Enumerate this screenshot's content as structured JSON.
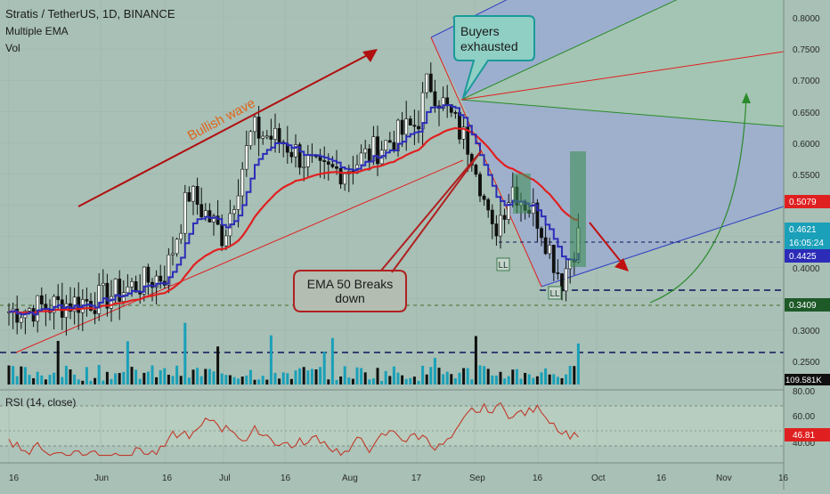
{
  "header": {
    "title": "Stratis / TetherUS, 1D, BINANCE",
    "indicator_1": "Multiple EMA",
    "indicator_2": "Vol"
  },
  "annotations": {
    "bullish_wave": "Bullish wave",
    "buyers_line1": "Buyers",
    "buyers_line2": "exhausted",
    "ema_line1": "EMA 50 Breaks",
    "ema_line2": "down",
    "ll_1": "LL",
    "ll_2": "LL"
  },
  "rsi": {
    "label": "RSI (14, close)",
    "ticks": [
      "80.00",
      "60.00",
      "40.00"
    ],
    "badge": "46.81"
  },
  "price_axis": {
    "ticks": [
      "0.8000",
      "0.7500",
      "0.7000",
      "0.6500",
      "0.6000",
      "0.5500",
      "0.4000",
      "0.3000",
      "0.2500"
    ],
    "badges": {
      "ema_red": "0.5079",
      "price": "0.4621",
      "countdown": "16:05:24",
      "ema_blue": "0.4425",
      "support": "0.3409",
      "volume": "109.581K"
    }
  },
  "time_axis": [
    "16",
    "Jun",
    "16",
    "Jul",
    "16",
    "Aug",
    "17",
    "Sep",
    "16",
    "Oct",
    "16",
    "Nov",
    "16"
  ],
  "colors": {
    "background": "#a8c0b6",
    "ema_red": "#e02020",
    "ema_blue": "#2c2cb8",
    "candle": "#101010",
    "volume_teal": "#1aa0b8",
    "volume_dark": "#101010",
    "pitchfork_fill_blue": "#9aa9d6",
    "pitchfork_fill_green": "#a6cfa8",
    "annotation_red": "#b01010",
    "buyers_box": "#1a9a9a",
    "rsi_line": "#c0392b",
    "wave_text": "#e0651a"
  },
  "chart_data": {
    "type": "candlestick",
    "symbol": "Stratis / TetherUS",
    "timeframe": "1D",
    "exchange": "BINANCE",
    "ylim": [
      0.2,
      0.8
    ],
    "close_series_approx": [
      {
        "x": "May 16",
        "y": 0.33
      },
      {
        "x": "Jun 1",
        "y": 0.35
      },
      {
        "x": "Jun 16",
        "y": 0.39
      },
      {
        "x": "Jun 22",
        "y": 0.52
      },
      {
        "x": "Jul 1",
        "y": 0.45
      },
      {
        "x": "Jul 8",
        "y": 0.62
      },
      {
        "x": "Jul 16",
        "y": 0.6
      },
      {
        "x": "Jul 25",
        "y": 0.55
      },
      {
        "x": "Aug 1",
        "y": 0.56
      },
      {
        "x": "Aug 10",
        "y": 0.6
      },
      {
        "x": "Aug 17",
        "y": 0.63
      },
      {
        "x": "Aug 20",
        "y": 0.7
      },
      {
        "x": "Sep 1",
        "y": 0.58
      },
      {
        "x": "Sep 5",
        "y": 0.45
      },
      {
        "x": "Sep 10",
        "y": 0.53
      },
      {
        "x": "Sep 16",
        "y": 0.48
      },
      {
        "x": "Sep 22",
        "y": 0.38
      },
      {
        "x": "Sep 27",
        "y": 0.4621
      }
    ],
    "ema_50_last": 0.5079,
    "ema_blue_last": 0.4425,
    "support_level": 0.3409,
    "rsi_last": 46.81,
    "rsi_ylim": [
      30,
      80
    ]
  }
}
